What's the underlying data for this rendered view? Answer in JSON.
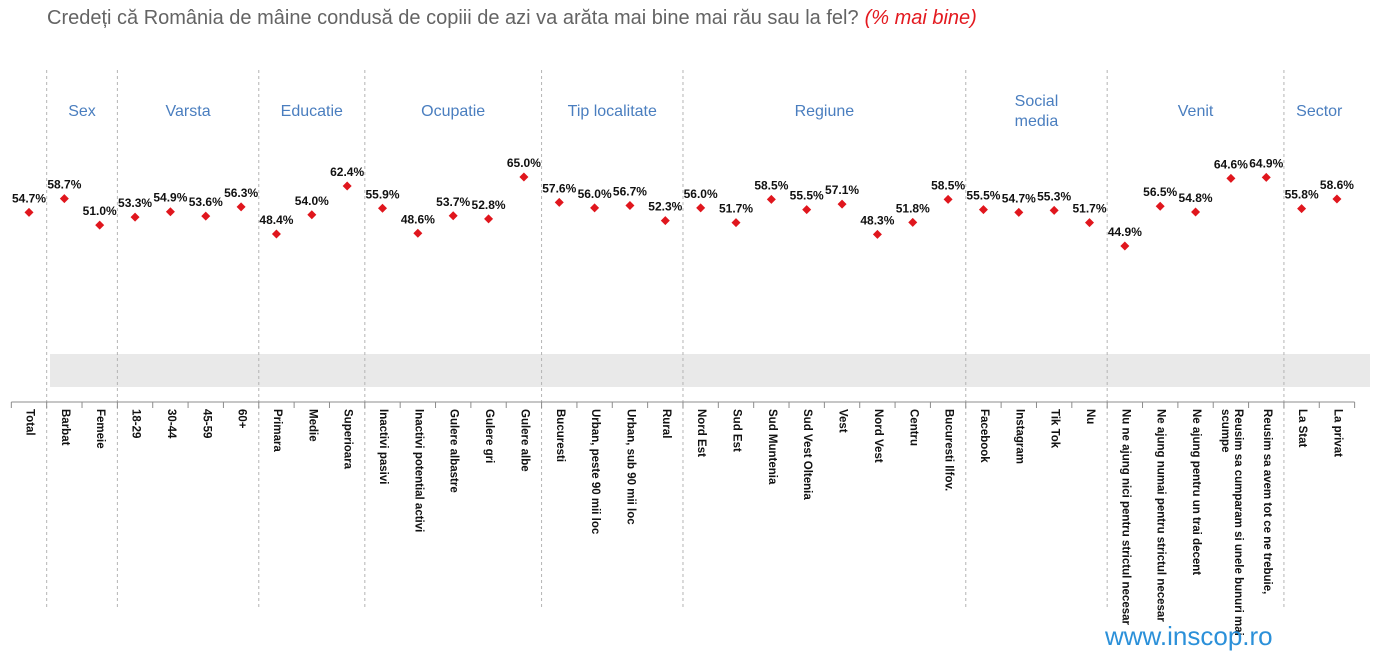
{
  "chart_data": {
    "type": "scatter",
    "title": "Credeți că România de mâine condusă de copiii de azi va arăta mai bine mai rău sau la fel?",
    "subtitle": "(% mai bine)",
    "categories": [
      "Total",
      "Barbat",
      "Femeie",
      "18-29",
      "30-44",
      "45-59",
      "60+",
      "Primara",
      "Medie",
      "Superioara",
      "Inactivi pasivi",
      "Inactivi potential activi",
      "Gulere albastre",
      "Gulere gri",
      "Gulere albe",
      "Bucuresti",
      "Urban, peste 90 mii loc",
      "Urban, sub 90 mii loc",
      "Rural",
      "Nord Est",
      "Sud Est",
      "Sud Muntenia",
      "Sud Vest Oltenia",
      "Vest",
      "Nord Vest",
      "Centru",
      "Bucuresti Ilfov.",
      "Facebook",
      "Instagram",
      "Tik Tok",
      "Nu",
      "Nu ne ajung nici pentru strictul necesar",
      "Ne ajung numai pentru strictul necesar",
      "Ne ajung pentru un trai decent",
      "Reusim sa cumparam si unele bunuri mai scumpe",
      "Reusim sa avem tot ce ne trebuie,",
      "La Stat",
      "La privat"
    ],
    "groups": [
      {
        "label": "Sex",
        "first": 1,
        "last": 2
      },
      {
        "label": "Varsta",
        "first": 3,
        "last": 6
      },
      {
        "label": "Educatie",
        "first": 7,
        "last": 9
      },
      {
        "label": "Ocupatie",
        "first": 10,
        "last": 14
      },
      {
        "label": "Tip localitate",
        "first": 15,
        "last": 18
      },
      {
        "label": "Regiune",
        "first": 19,
        "last": 26
      },
      {
        "label": "Social media",
        "first": 27,
        "last": 30
      },
      {
        "label": "Venit",
        "first": 31,
        "last": 35
      },
      {
        "label": "Sector",
        "first": 36,
        "last": 37
      }
    ],
    "series": [
      {
        "color": "#e0161d",
        "values": [
          54.7,
          58.7,
          51.0,
          53.3,
          54.9,
          53.6,
          56.3,
          48.4,
          54.0,
          62.4,
          55.9,
          48.6,
          53.7,
          52.8,
          65.0,
          57.6,
          56.0,
          56.7,
          52.3,
          56.0,
          51.7,
          58.5,
          55.5,
          57.1,
          48.3,
          51.8,
          58.5,
          55.5,
          54.7,
          55.3,
          51.7,
          44.9,
          56.5,
          54.8,
          64.6,
          64.9,
          55.8,
          58.6
        ]
      }
    ],
    "value_suffix": "%",
    "ylim": [
      0,
      100
    ],
    "grid": false,
    "legend": "none"
  },
  "footer": {
    "website": "www.inscop.ro"
  },
  "colors": {
    "title": "#646464",
    "subtitle": "#e3191f",
    "group_label": "#4a7ebf",
    "footer": "#2b90d9",
    "band": "#e9e9e9"
  }
}
